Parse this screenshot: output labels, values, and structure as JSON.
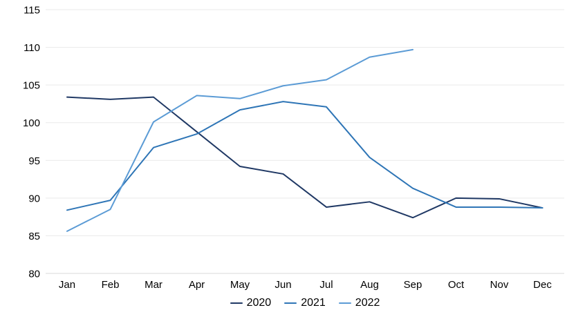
{
  "chart_data": {
    "type": "line",
    "title": "",
    "xlabel": "",
    "ylabel": "",
    "categories": [
      "Jan",
      "Feb",
      "Mar",
      "Apr",
      "May",
      "Jun",
      "Jul",
      "Aug",
      "Sep",
      "Oct",
      "Nov",
      "Dec"
    ],
    "series": [
      {
        "name": "2020",
        "color": "#1F3864",
        "values": [
          103.4,
          103.1,
          103.4,
          98.8,
          94.2,
          93.2,
          88.8,
          89.5,
          87.4,
          90.0,
          89.9,
          88.7
        ]
      },
      {
        "name": "2021",
        "color": "#2E75B6",
        "values": [
          88.4,
          89.7,
          96.7,
          98.5,
          101.7,
          102.8,
          102.1,
          95.4,
          91.3,
          88.8,
          88.8,
          88.7
        ]
      },
      {
        "name": "2022",
        "color": "#5B9BD5",
        "values": [
          85.6,
          88.5,
          100.1,
          103.6,
          103.2,
          104.9,
          105.7,
          108.7,
          109.7,
          null,
          null,
          null
        ]
      }
    ],
    "ylim": [
      80,
      115
    ],
    "yticks": [
      80,
      85,
      90,
      95,
      100,
      105,
      110,
      115
    ],
    "grid": true,
    "legend_position": "bottom",
    "grid_color": "#e9e9e9",
    "axis_color": "#d9d9d9",
    "tick_label_color": "#000000",
    "background": "#ffffff"
  }
}
